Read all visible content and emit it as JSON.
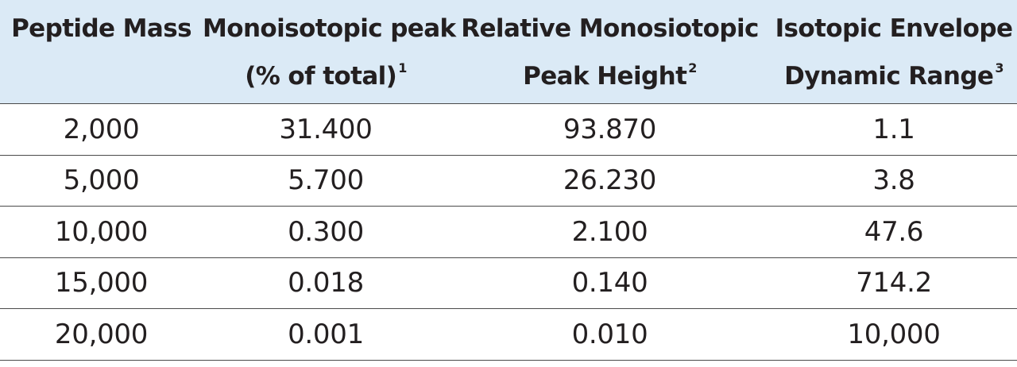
{
  "table": {
    "headers": [
      {
        "line1": "Peptide Mass",
        "line2": "",
        "sup": ""
      },
      {
        "line1": "Monoisotopic peak",
        "line2": "(% of total)",
        "sup": "1"
      },
      {
        "line1": "Relative Monosiotopic",
        "line2": "Peak Height",
        "sup": "2"
      },
      {
        "line1": "Isotopic Envelope",
        "line2": "Dynamic Range",
        "sup": "3"
      }
    ],
    "rows": [
      [
        "2,000",
        "31.400",
        "93.870",
        "1.1"
      ],
      [
        "5,000",
        "5.700",
        "26.230",
        "3.8"
      ],
      [
        "10,000",
        "0.300",
        "2.100",
        "47.6"
      ],
      [
        "15,000",
        "0.018",
        "0.140",
        "714.2"
      ],
      [
        "20,000",
        "0.001",
        "0.010",
        "10,000"
      ]
    ]
  },
  "colors": {
    "header_bg": "#dbeaf6",
    "rule": "#4a4a4a",
    "text": "#231f20"
  }
}
